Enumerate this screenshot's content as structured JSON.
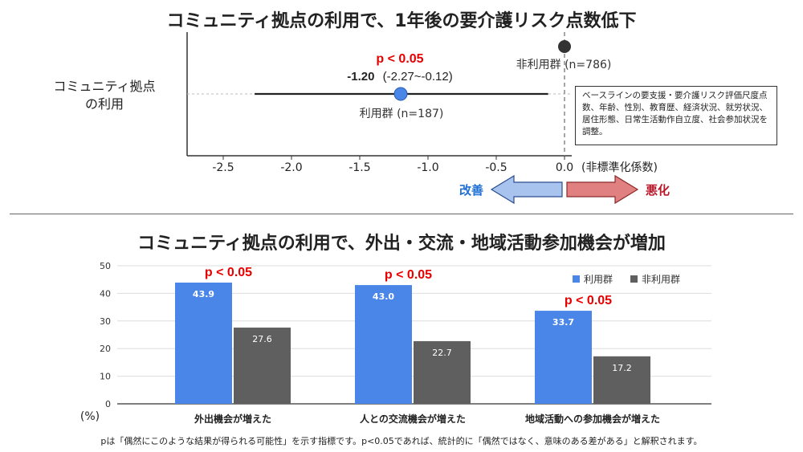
{
  "titles": {
    "top": "コミュニティ拠点の利用で、1年後の要介護リスク点数低下",
    "bottom": "コミュニティ拠点の利用で、外出・交流・地域活動参加機会が増加"
  },
  "forest": {
    "row_label_line1": "コミュニティ拠点",
    "row_label_line2": "の利用",
    "pvalue": "p < 0.05",
    "estimate_bold": "-1.20",
    "estimate_ci": "(-2.27~-0.12)",
    "user_label": "利用群 (n=187)",
    "nonuser_label": "非利用群 (n=786)",
    "axis_unit": "(非標準化係数)",
    "note": "ベースラインの要支援・要介護リスク評価尺度点数、年齢、性別、教育歴、経済状況、就労状況、居住形態、日常生活動作自立度、社会参加状況を調整。",
    "improve_label": "改善",
    "worsen_label": "悪化",
    "colors": {
      "improve": "#1f6fd6",
      "worsen": "#b8182a",
      "improve_arrow": "#a8c4ee",
      "worsen_arrow": "#e08080",
      "point": "#4a86e8"
    }
  },
  "chart_data": [
    {
      "type": "scatter",
      "title": "コミュニティ拠点の利用で、1年後の要介護リスク点数低下",
      "xlabel": "(非標準化係数)",
      "xlim": [
        -2.7,
        0.15
      ],
      "xticks": [
        -2.5,
        -2.0,
        -1.5,
        -1.0,
        -0.5,
        0.0
      ],
      "xtick_labels": [
        "-2.5",
        "-2.0",
        "-1.5",
        "-1.0",
        "-0.5",
        "0.0"
      ],
      "series": [
        {
          "name": "利用群 (n=187)",
          "x": [
            -1.2
          ],
          "ci_low": -2.27,
          "ci_high": -0.12
        },
        {
          "name": "非利用群 (n=786)",
          "x": [
            0.0
          ]
        }
      ]
    },
    {
      "type": "bar",
      "title": "コミュニティ拠点の利用で、外出・交流・地域活動参加機会が増加",
      "categories": [
        "外出機会が増えた",
        "人との交流機会が増えた",
        "地域活動への参加機会が増えた"
      ],
      "series": [
        {
          "name": "利用群",
          "values": [
            43.9,
            43.0,
            33.7
          ],
          "color": "#4a86e8"
        },
        {
          "name": "非利用群",
          "values": [
            27.6,
            22.7,
            17.2
          ],
          "color": "#5f5f5f"
        }
      ],
      "ylim": [
        0,
        50
      ],
      "yticks": [
        0,
        10,
        20,
        30,
        40,
        50
      ],
      "ylabel": "(%)",
      "pvalues": [
        "p < 0.05",
        "p < 0.05",
        "p < 0.05"
      ],
      "legend": "top-right",
      "grid": true
    }
  ],
  "footnote": "pは「偶然にこのような結果が得られる可能性」を示す指標です。p<0.05であれば、統計的に「偶然ではなく、意味のある差がある」と解釈されます。"
}
